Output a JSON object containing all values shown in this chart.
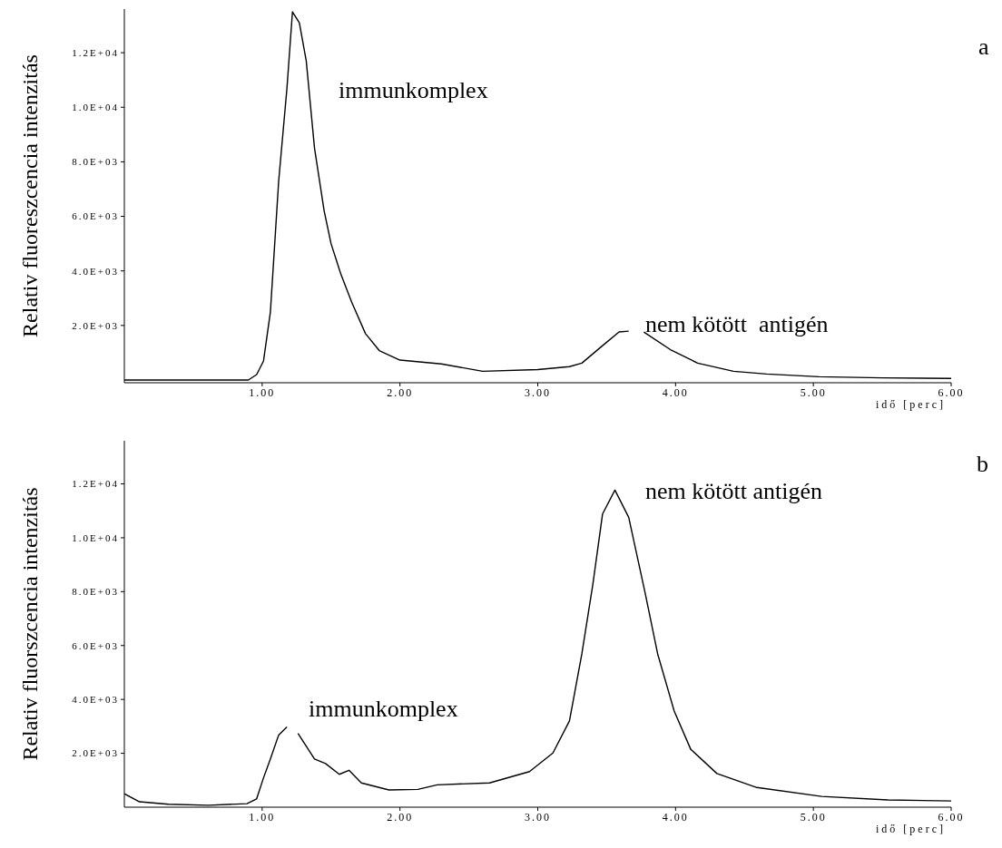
{
  "chart_data": [
    {
      "type": "line",
      "xlabel": "idő [perc]",
      "ylabel": "Relativ fluoreszcencia  intenzitás",
      "x": [
        0,
        0.5,
        0.9,
        0.96,
        1.01,
        1.06,
        1.12,
        1.18,
        1.22,
        1.27,
        1.32,
        1.38,
        1.45,
        1.5,
        1.57,
        1.65,
        1.75,
        1.85,
        2.0,
        2.3,
        2.6,
        3.0,
        3.23,
        3.32,
        3.47,
        3.59,
        3.66,
        3.71,
        3.77,
        3.97,
        4.16,
        4.42,
        4.66,
        5.04,
        5.5,
        6.0
      ],
      "series": [
        {
          "color": "#000000",
          "values": [
            0,
            0,
            0,
            200,
            700,
            2500,
            7300,
            10700,
            13500,
            13100,
            11700,
            8500,
            6200,
            5000,
            3900,
            2850,
            1700,
            1080,
            730,
            590,
            320,
            380,
            490,
            620,
            1260,
            1760,
            1790,
            null,
            1760,
            1090,
            620,
            320,
            220,
            120,
            80,
            60
          ]
        }
      ],
      "xlim": [
        0,
        6
      ],
      "xticks": [
        {
          "value": 1,
          "label": "1.00"
        },
        {
          "value": 2,
          "label": "2.00"
        },
        {
          "value": 3,
          "label": "3.00"
        },
        {
          "value": 4,
          "label": "4.00"
        },
        {
          "value": 5,
          "label": "5.00"
        },
        {
          "value": 6,
          "label": "6.00"
        }
      ],
      "ylim": [
        -100,
        13600
      ],
      "yticks": [
        {
          "value": 2000,
          "label": "2.0E+03"
        },
        {
          "value": 4000,
          "label": "4.0E+03"
        },
        {
          "value": 6000,
          "label": "6.0E+03"
        },
        {
          "value": 8000,
          "label": "8.0E+03"
        },
        {
          "value": 10000,
          "label": "1.0E+04"
        },
        {
          "value": 12000,
          "label": "1.2E+04"
        }
      ],
      "annotations": [
        "immunkomplex",
        "nem kötött  antigén",
        "a"
      ],
      "grid": false,
      "legend": false,
      "marker": "none",
      "line_style": "solid"
    },
    {
      "type": "line",
      "xlabel": "idő [perc]",
      "ylabel": "Relativ fluorszcencia intenzitás",
      "x": [
        0,
        0.11,
        0.32,
        0.61,
        0.89,
        0.96,
        1.01,
        1.06,
        1.12,
        1.18,
        1.21,
        1.26,
        1.38,
        1.46,
        1.56,
        1.63,
        1.72,
        1.92,
        2.13,
        2.27,
        2.65,
        2.94,
        3.11,
        3.23,
        3.32,
        3.4,
        3.47,
        3.56,
        3.66,
        3.78,
        3.87,
        3.99,
        4.11,
        4.3,
        4.59,
        5.06,
        5.54,
        6.0
      ],
      "series": [
        {
          "color": "#000000",
          "values": [
            500,
            200,
            110,
            70,
            130,
            310,
            1090,
            1790,
            2680,
            2980,
            null,
            2740,
            1790,
            1620,
            1220,
            1370,
            900,
            640,
            660,
            830,
            900,
            1320,
            2010,
            3200,
            5690,
            8280,
            10880,
            11770,
            10760,
            7930,
            5690,
            3570,
            2150,
            1250,
            730,
            400,
            270,
            230
          ]
        }
      ],
      "xlim": [
        0,
        6
      ],
      "xticks": [
        {
          "value": 1,
          "label": "1.00"
        },
        {
          "value": 2,
          "label": "2.00"
        },
        {
          "value": 3,
          "label": "3.00"
        },
        {
          "value": 4,
          "label": "4.00"
        },
        {
          "value": 5,
          "label": "5.00"
        },
        {
          "value": 6,
          "label": "6.00"
        }
      ],
      "ylim": [
        0,
        13600
      ],
      "yticks": [
        {
          "value": 2000,
          "label": "2.0E+03"
        },
        {
          "value": 4000,
          "label": "4.0E+03"
        },
        {
          "value": 6000,
          "label": "6.0E+03"
        },
        {
          "value": 8000,
          "label": "8.0E+03"
        },
        {
          "value": 10000,
          "label": "1.0E+04"
        },
        {
          "value": 12000,
          "label": "1.2E+04"
        }
      ],
      "annotations": [
        "immunkomplex",
        "nem kötött antigén",
        "b"
      ],
      "grid": false,
      "legend": false,
      "marker": "none",
      "line_style": "solid"
    }
  ]
}
